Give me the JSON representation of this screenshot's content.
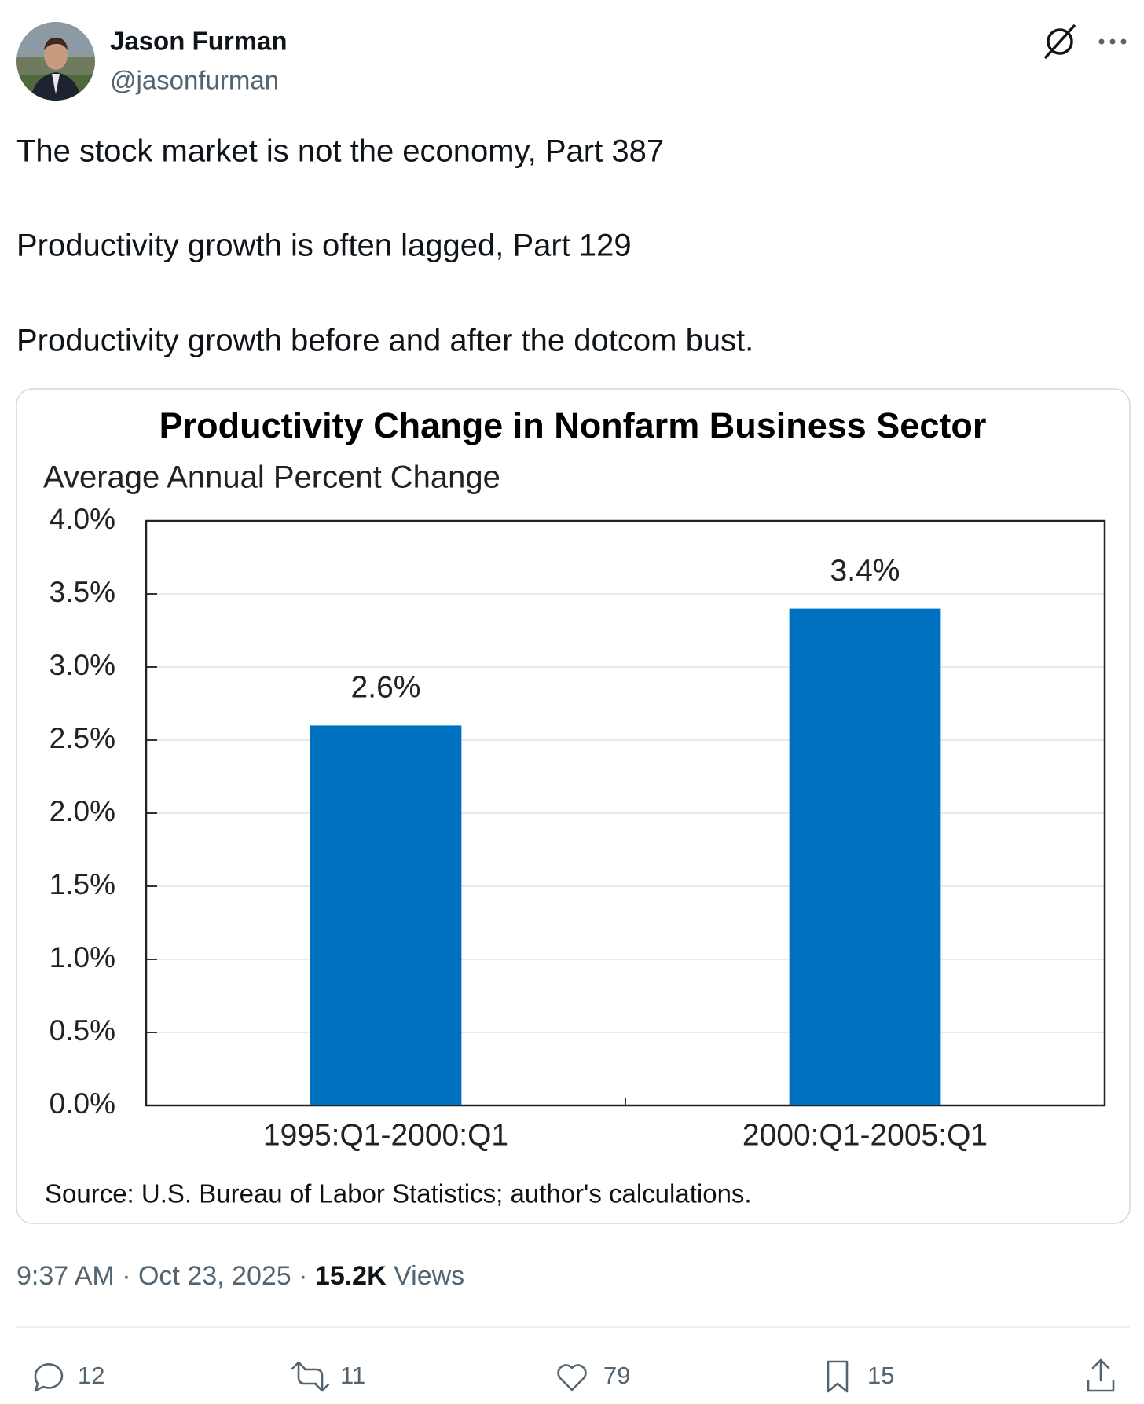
{
  "tweet": {
    "name": "Jason Furman",
    "handle": "@jasonfurman",
    "text": [
      "The stock market is not the economy, Part 387",
      "Productivity growth is often lagged, Part 129",
      "Productivity growth before and after the dotcom bust."
    ],
    "time": "9:37 AM",
    "separator": "·",
    "date": "Oct 23, 2025",
    "views": "15.2K",
    "views_label": "Views",
    "replies": 12,
    "reposts": 11,
    "likes": 79,
    "bookmarks": 15
  },
  "chart_data": {
    "type": "bar",
    "title": "Productivity Change in Nonfarm Business Sector",
    "subtitle": "Average Annual Percent Change",
    "categories": [
      "1995:Q1-2000:Q1",
      "2000:Q1-2005:Q1"
    ],
    "values": [
      2.6,
      3.4
    ],
    "value_labels": [
      "2.6%",
      "3.4%"
    ],
    "color": "#0070c0",
    "ylim": [
      0,
      4
    ],
    "yticks": [
      {
        "value": 0,
        "label": "0.0%"
      },
      {
        "value": 0.5,
        "label": "0.5%"
      },
      {
        "value": 1,
        "label": "1.0%"
      },
      {
        "value": 1.5,
        "label": "1.5%"
      },
      {
        "value": 2,
        "label": "2.0%"
      },
      {
        "value": 2.5,
        "label": "2.5%"
      },
      {
        "value": 3,
        "label": "3.0%"
      },
      {
        "value": 3.5,
        "label": "3.5%"
      },
      {
        "value": 4,
        "label": "4.0%"
      }
    ],
    "grid": true,
    "source": "Source:  U.S. Bureau of Labor Statistics; author's calculations."
  }
}
